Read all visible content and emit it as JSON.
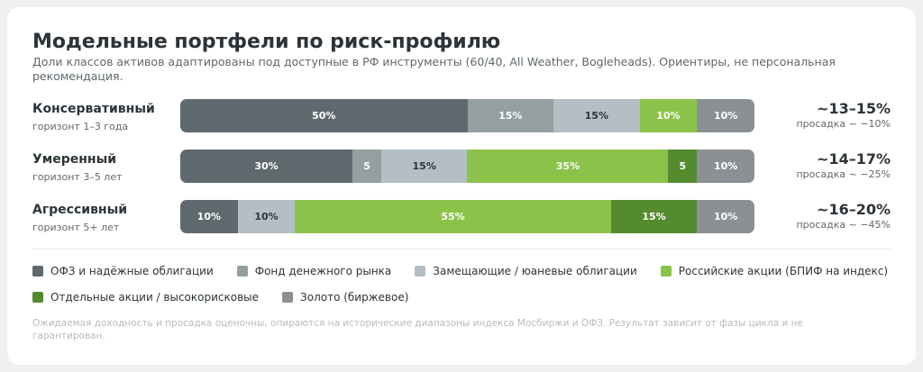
{
  "title": "Модельные портфели по риск-профилю",
  "subtitle": "Доли классов активов адаптированы под доступные в РФ инструменты (60/40, All Weather, Bogleheads). Ориентиры, не персональная рекомендация.",
  "legend": [
    {
      "key": "ofz",
      "label": "ОФЗ и надёжные облигации",
      "color": "#5f6a6f"
    },
    {
      "key": "mm",
      "label": "Фонд денежного рынка",
      "color": "#939fa1"
    },
    {
      "key": "repl",
      "label": "Замещающие / юаневые облигации",
      "color": "#b4bec4"
    },
    {
      "key": "ruseq",
      "label": "Российские акции (БПИФ на индекс)",
      "color": "#8bc34a"
    },
    {
      "key": "single",
      "label": "Отдельные акции / высокорисковые",
      "color": "#558b2f"
    },
    {
      "key": "gold",
      "label": "Золото (биржевое)",
      "color": "#8a9093"
    }
  ],
  "footnote": "Ожидаемая доходность и просадка оценочны, опираются на исторические диапазоны индекса Мосбиржи и ОФЗ. Результат зависит от фазы цикла и не гарантирован.",
  "chart_data": {
    "type": "bar",
    "stacked": true,
    "orientation": "horizontal",
    "categories": [
      "Консервативный",
      "Умеренный",
      "Агрессивный"
    ],
    "horizons": [
      "горизонт 1–3 года",
      "горизонт 3–5 лет",
      "горизонт 5+ лет"
    ],
    "returns": [
      "~13–15%",
      "~14–17%",
      "~16–20%"
    ],
    "drawdowns": [
      "просадка ~ −10%",
      "просадка ~ −25%",
      "просадка ~ −45%"
    ],
    "series": [
      {
        "name": "ОФЗ и надёжные облигации",
        "values": [
          50,
          30,
          10
        ],
        "labels": [
          "50%",
          "30%",
          "10%"
        ]
      },
      {
        "name": "Фонд денежного рынка",
        "values": [
          15,
          5,
          0
        ],
        "labels": [
          "15%",
          "5",
          ""
        ]
      },
      {
        "name": "Замещающие / юаневые облигации",
        "values": [
          15,
          15,
          10
        ],
        "labels": [
          "15%",
          "15%",
          "10%"
        ]
      },
      {
        "name": "Российские акции (БПИФ на индекс)",
        "values": [
          10,
          35,
          55
        ],
        "labels": [
          "10%",
          "35%",
          "55%"
        ]
      },
      {
        "name": "Отдельные акции / высокорисковые",
        "values": [
          0,
          5,
          15
        ],
        "labels": [
          "",
          "5",
          "15%"
        ]
      },
      {
        "name": "Золото (биржевое)",
        "values": [
          10,
          10,
          10
        ],
        "labels": [
          "10%",
          "10%",
          "10%"
        ]
      }
    ],
    "xlim": [
      0,
      100
    ]
  }
}
